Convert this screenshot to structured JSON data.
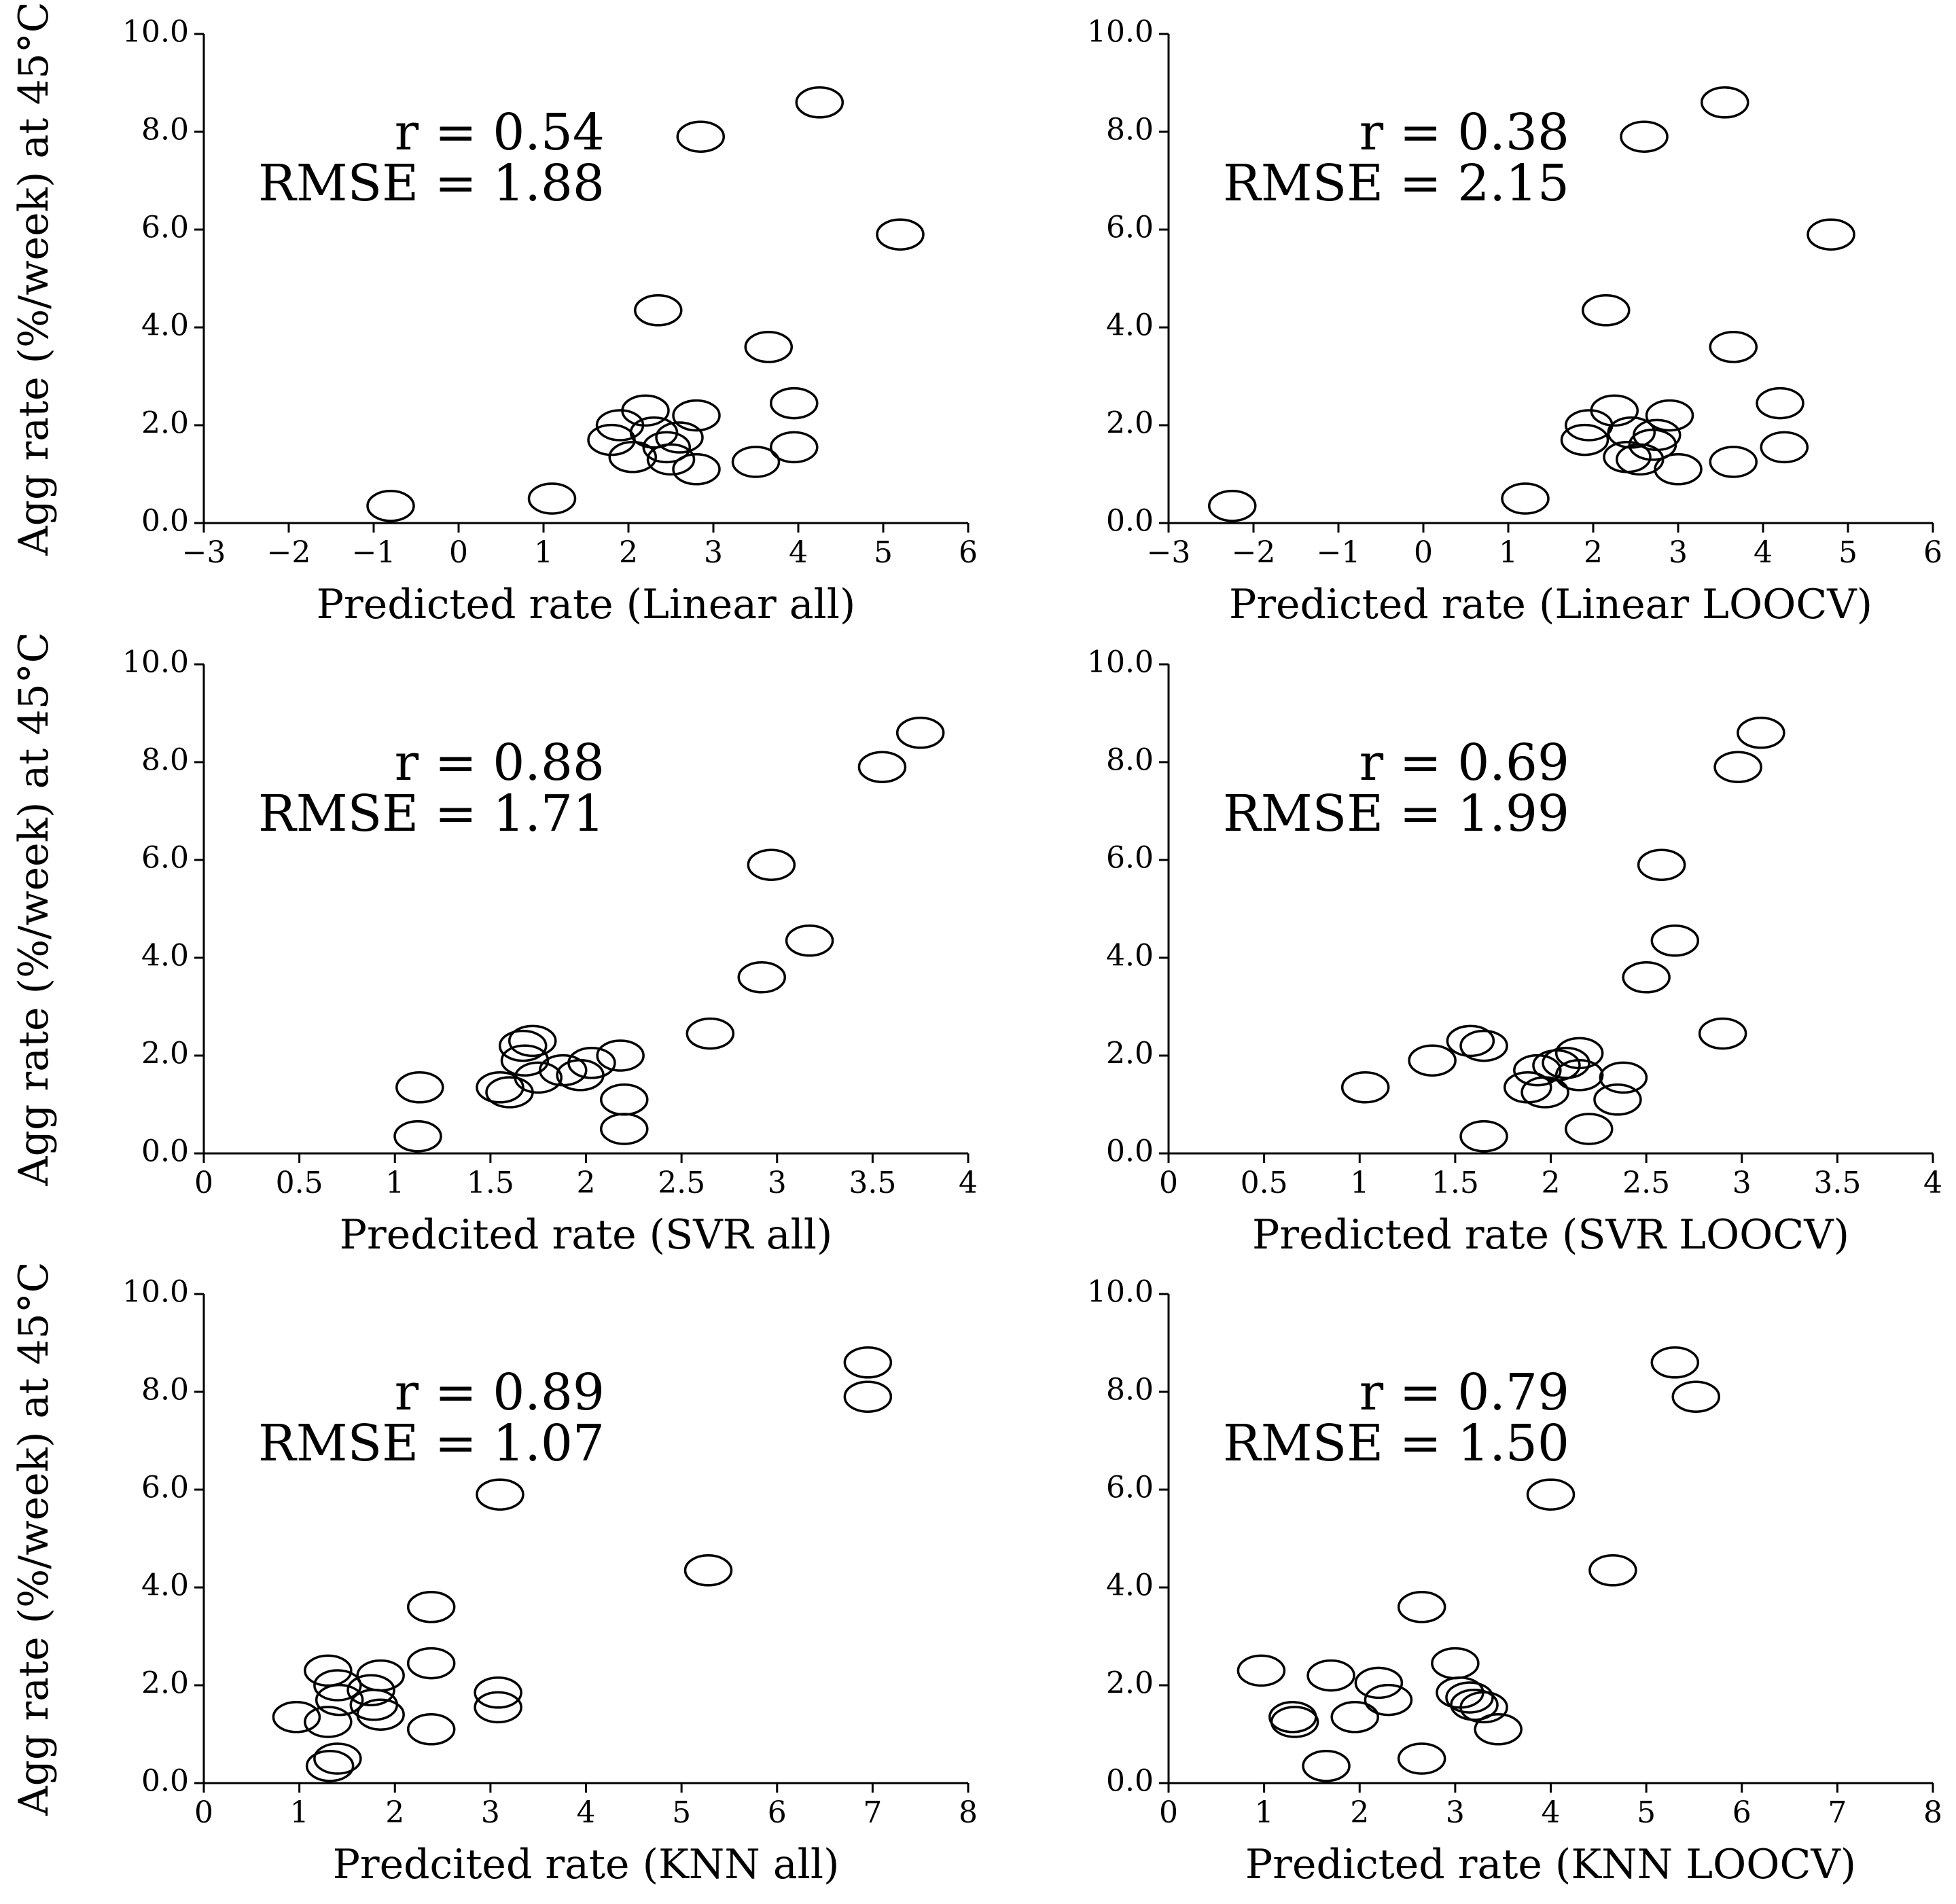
{
  "figure": {
    "ylabel": "Agg rate (%/week) at 45°C"
  },
  "chart_data": [
    {
      "type": "scatter",
      "xlabel": "Predicted rate (Linear all)",
      "ylabel": "Agg rate (%/week) at 45°C",
      "xlim": [
        -3,
        6
      ],
      "ylim": [
        0,
        10
      ],
      "xticks": [
        -3,
        -2,
        -1,
        0,
        1,
        2,
        3,
        4,
        5,
        6
      ],
      "xtick_labels": [
        "−3",
        "−2",
        "−1",
        "0",
        "1",
        "2",
        "3",
        "4",
        "5",
        "6"
      ],
      "yticks": [
        0,
        2,
        4,
        6,
        8,
        10
      ],
      "ytick_labels": [
        "0.0",
        "2.0",
        "4.0",
        "6.0",
        "8.0",
        "10.0"
      ],
      "annotation": {
        "r": "r = 0.54",
        "rmse": "RMSE = 1.88"
      },
      "points": [
        {
          "x": -0.8,
          "y": 0.35
        },
        {
          "x": 1.1,
          "y": 0.5
        },
        {
          "x": 1.8,
          "y": 1.7
        },
        {
          "x": 1.9,
          "y": 2.0
        },
        {
          "x": 2.05,
          "y": 1.35
        },
        {
          "x": 2.2,
          "y": 2.3
        },
        {
          "x": 2.3,
          "y": 1.85
        },
        {
          "x": 2.35,
          "y": 4.35
        },
        {
          "x": 2.45,
          "y": 1.55
        },
        {
          "x": 2.5,
          "y": 1.3
        },
        {
          "x": 2.6,
          "y": 1.75
        },
        {
          "x": 2.8,
          "y": 2.2
        },
        {
          "x": 2.8,
          "y": 1.1
        },
        {
          "x": 2.85,
          "y": 7.9
        },
        {
          "x": 3.5,
          "y": 1.25
        },
        {
          "x": 3.65,
          "y": 3.6
        },
        {
          "x": 3.95,
          "y": 2.45
        },
        {
          "x": 3.95,
          "y": 1.55
        },
        {
          "x": 4.25,
          "y": 8.6
        },
        {
          "x": 5.2,
          "y": 5.9
        }
      ]
    },
    {
      "type": "scatter",
      "xlabel": "Predicted rate (Linear LOOCV)",
      "ylabel": "",
      "xlim": [
        -3,
        6
      ],
      "ylim": [
        0,
        10
      ],
      "xticks": [
        -3,
        -2,
        -1,
        0,
        1,
        2,
        3,
        4,
        5,
        6
      ],
      "xtick_labels": [
        "−3",
        "−2",
        "−1",
        "0",
        "1",
        "2",
        "3",
        "4",
        "5",
        "6"
      ],
      "yticks": [
        0,
        2,
        4,
        6,
        8,
        10
      ],
      "ytick_labels": [
        "0.0",
        "2.0",
        "4.0",
        "6.0",
        "8.0",
        "10.0"
      ],
      "annotation": {
        "r": "r = 0.38",
        "rmse": "RMSE = 2.15"
      },
      "points": [
        {
          "x": -2.25,
          "y": 0.35
        },
        {
          "x": 1.2,
          "y": 0.5
        },
        {
          "x": 1.9,
          "y": 1.7
        },
        {
          "x": 1.95,
          "y": 2.0
        },
        {
          "x": 2.15,
          "y": 4.35
        },
        {
          "x": 2.25,
          "y": 2.3
        },
        {
          "x": 2.4,
          "y": 1.35
        },
        {
          "x": 2.45,
          "y": 1.85
        },
        {
          "x": 2.55,
          "y": 1.3
        },
        {
          "x": 2.6,
          "y": 7.9
        },
        {
          "x": 2.7,
          "y": 1.6
        },
        {
          "x": 2.75,
          "y": 1.8
        },
        {
          "x": 2.9,
          "y": 2.2
        },
        {
          "x": 3.0,
          "y": 1.1
        },
        {
          "x": 3.55,
          "y": 8.6
        },
        {
          "x": 3.65,
          "y": 3.6
        },
        {
          "x": 3.65,
          "y": 1.25
        },
        {
          "x": 4.2,
          "y": 2.45
        },
        {
          "x": 4.25,
          "y": 1.55
        },
        {
          "x": 4.8,
          "y": 5.9
        }
      ]
    },
    {
      "type": "scatter",
      "xlabel": "Predcited rate (SVR all)",
      "ylabel": "Agg rate (%/week) at 45°C",
      "xlim": [
        0,
        4
      ],
      "ylim": [
        0,
        10
      ],
      "xticks": [
        0,
        0.5,
        1,
        1.5,
        2,
        2.5,
        3,
        3.5,
        4
      ],
      "xtick_labels": [
        "0",
        "0.5",
        "1",
        "1.5",
        "2",
        "2.5",
        "3",
        "3.5",
        "4"
      ],
      "yticks": [
        0,
        2,
        4,
        6,
        8,
        10
      ],
      "ytick_labels": [
        "0.0",
        "2.0",
        "4.0",
        "6.0",
        "8.0",
        "10.0"
      ],
      "annotation": {
        "r": "r = 0.88",
        "rmse": "RMSE = 1.71"
      },
      "points": [
        {
          "x": 1.13,
          "y": 1.35
        },
        {
          "x": 1.12,
          "y": 0.35
        },
        {
          "x": 1.55,
          "y": 1.35
        },
        {
          "x": 1.6,
          "y": 1.25
        },
        {
          "x": 1.67,
          "y": 2.2
        },
        {
          "x": 1.68,
          "y": 1.9
        },
        {
          "x": 1.72,
          "y": 2.3
        },
        {
          "x": 1.75,
          "y": 1.55
        },
        {
          "x": 1.88,
          "y": 1.7
        },
        {
          "x": 1.97,
          "y": 1.6
        },
        {
          "x": 2.03,
          "y": 1.85
        },
        {
          "x": 2.18,
          "y": 2.0
        },
        {
          "x": 2.2,
          "y": 1.1
        },
        {
          "x": 2.2,
          "y": 0.5
        },
        {
          "x": 2.65,
          "y": 2.45
        },
        {
          "x": 2.92,
          "y": 3.6
        },
        {
          "x": 2.97,
          "y": 5.9
        },
        {
          "x": 3.17,
          "y": 4.35
        },
        {
          "x": 3.55,
          "y": 7.9
        },
        {
          "x": 3.75,
          "y": 8.6
        }
      ]
    },
    {
      "type": "scatter",
      "xlabel": "Predicted rate (SVR LOOCV)",
      "ylabel": "",
      "xlim": [
        0,
        4
      ],
      "ylim": [
        0,
        10
      ],
      "xticks": [
        0,
        0.5,
        1,
        1.5,
        2,
        2.5,
        3,
        3.5,
        4
      ],
      "xtick_labels": [
        "0",
        "0.5",
        "1",
        "1.5",
        "2",
        "2.5",
        "3",
        "3.5",
        "4"
      ],
      "yticks": [
        0,
        2,
        4,
        6,
        8,
        10
      ],
      "ytick_labels": [
        "0.0",
        "2.0",
        "4.0",
        "6.0",
        "8.0",
        "10.0"
      ],
      "annotation": {
        "r": "r = 0.69",
        "rmse": "RMSE = 1.99"
      },
      "points": [
        {
          "x": 1.03,
          "y": 1.35
        },
        {
          "x": 1.38,
          "y": 1.9
        },
        {
          "x": 1.58,
          "y": 2.3
        },
        {
          "x": 1.65,
          "y": 2.2
        },
        {
          "x": 1.65,
          "y": 0.35
        },
        {
          "x": 1.88,
          "y": 1.35
        },
        {
          "x": 1.93,
          "y": 1.7
        },
        {
          "x": 1.97,
          "y": 1.25
        },
        {
          "x": 2.03,
          "y": 1.8
        },
        {
          "x": 2.08,
          "y": 1.85
        },
        {
          "x": 2.15,
          "y": 1.6
        },
        {
          "x": 2.15,
          "y": 2.05
        },
        {
          "x": 2.2,
          "y": 0.5
        },
        {
          "x": 2.35,
          "y": 1.1
        },
        {
          "x": 2.38,
          "y": 1.55
        },
        {
          "x": 2.5,
          "y": 3.6
        },
        {
          "x": 2.58,
          "y": 5.9
        },
        {
          "x": 2.65,
          "y": 4.35
        },
        {
          "x": 2.9,
          "y": 2.45
        },
        {
          "x": 2.98,
          "y": 7.9
        },
        {
          "x": 3.1,
          "y": 8.6
        }
      ]
    },
    {
      "type": "scatter",
      "xlabel": "Predcited rate (KNN all)",
      "ylabel": "Agg rate (%/week) at 45°C",
      "xlim": [
        0,
        8
      ],
      "ylim": [
        0,
        10
      ],
      "xticks": [
        0,
        1,
        2,
        3,
        4,
        5,
        6,
        7,
        8
      ],
      "xtick_labels": [
        "0",
        "1",
        "2",
        "3",
        "4",
        "5",
        "6",
        "7",
        "8"
      ],
      "yticks": [
        0,
        2,
        4,
        6,
        8,
        10
      ],
      "ytick_labels": [
        "0.0",
        "2.0",
        "4.0",
        "6.0",
        "8.0",
        "10.0"
      ],
      "annotation": {
        "r": "r = 0.89",
        "rmse": "RMSE = 1.07"
      },
      "points": [
        {
          "x": 0.97,
          "y": 1.35
        },
        {
          "x": 1.3,
          "y": 2.3
        },
        {
          "x": 1.3,
          "y": 1.25
        },
        {
          "x": 1.32,
          "y": 0.35
        },
        {
          "x": 1.4,
          "y": 0.5
        },
        {
          "x": 1.4,
          "y": 2.0
        },
        {
          "x": 1.42,
          "y": 1.7
        },
        {
          "x": 1.75,
          "y": 1.9
        },
        {
          "x": 1.78,
          "y": 1.6
        },
        {
          "x": 1.85,
          "y": 2.2
        },
        {
          "x": 1.85,
          "y": 1.4
        },
        {
          "x": 2.38,
          "y": 3.6
        },
        {
          "x": 2.38,
          "y": 2.45
        },
        {
          "x": 2.38,
          "y": 1.1
        },
        {
          "x": 3.08,
          "y": 1.85
        },
        {
          "x": 3.08,
          "y": 1.55
        },
        {
          "x": 3.1,
          "y": 5.9
        },
        {
          "x": 5.28,
          "y": 4.35
        },
        {
          "x": 6.95,
          "y": 8.6
        },
        {
          "x": 6.95,
          "y": 7.9
        }
      ]
    },
    {
      "type": "scatter",
      "xlabel": "Predicted rate (KNN LOOCV)",
      "ylabel": "",
      "xlim": [
        0,
        8
      ],
      "ylim": [
        0,
        10
      ],
      "xticks": [
        0,
        1,
        2,
        3,
        4,
        5,
        6,
        7,
        8
      ],
      "xtick_labels": [
        "0",
        "1",
        "2",
        "3",
        "4",
        "5",
        "6",
        "7",
        "8"
      ],
      "yticks": [
        0,
        2,
        4,
        6,
        8,
        10
      ],
      "ytick_labels": [
        "0.0",
        "2.0",
        "4.0",
        "6.0",
        "8.0",
        "10.0"
      ],
      "annotation": {
        "r": "r = 0.79",
        "rmse": "RMSE = 1.50"
      },
      "points": [
        {
          "x": 0.97,
          "y": 2.3
        },
        {
          "x": 1.3,
          "y": 1.35
        },
        {
          "x": 1.32,
          "y": 1.25
        },
        {
          "x": 1.65,
          "y": 0.35
        },
        {
          "x": 1.7,
          "y": 2.2
        },
        {
          "x": 1.95,
          "y": 1.35
        },
        {
          "x": 2.2,
          "y": 2.05
        },
        {
          "x": 2.3,
          "y": 1.7
        },
        {
          "x": 2.65,
          "y": 0.5
        },
        {
          "x": 2.65,
          "y": 3.6
        },
        {
          "x": 3.0,
          "y": 2.45
        },
        {
          "x": 3.05,
          "y": 1.85
        },
        {
          "x": 3.15,
          "y": 1.75
        },
        {
          "x": 3.2,
          "y": 1.6
        },
        {
          "x": 3.3,
          "y": 1.55
        },
        {
          "x": 3.45,
          "y": 1.1
        },
        {
          "x": 4.0,
          "y": 5.9
        },
        {
          "x": 4.65,
          "y": 4.35
        },
        {
          "x": 5.3,
          "y": 8.6
        },
        {
          "x": 5.52,
          "y": 7.9
        }
      ]
    }
  ]
}
